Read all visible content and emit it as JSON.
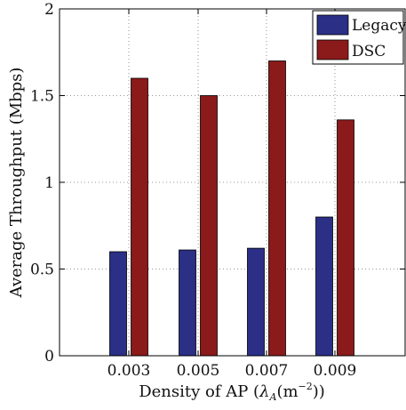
{
  "chart_data": {
    "type": "bar",
    "categories": [
      "0.003",
      "0.005",
      "0.007",
      "0.009"
    ],
    "series": [
      {
        "name": "Legacy",
        "values": [
          0.6,
          0.61,
          0.62,
          0.8
        ],
        "color": "#2b2f86"
      },
      {
        "name": "DSC",
        "values": [
          1.6,
          1.5,
          1.7,
          1.36
        ],
        "color": "#8b1a1a"
      }
    ],
    "ylim": [
      0,
      2
    ],
    "yticks": [
      "0",
      "0.5",
      "1",
      "1.5",
      "2"
    ],
    "ylabel": "Average Throughput (Mbps)",
    "xlabel": {
      "prefix": "Density of AP (",
      "lambda": "λ",
      "lambda_sub": "A",
      "mid": "(m",
      "sup": "−2",
      "suffix": "))"
    },
    "grid": true,
    "legend_position": "top-right"
  }
}
